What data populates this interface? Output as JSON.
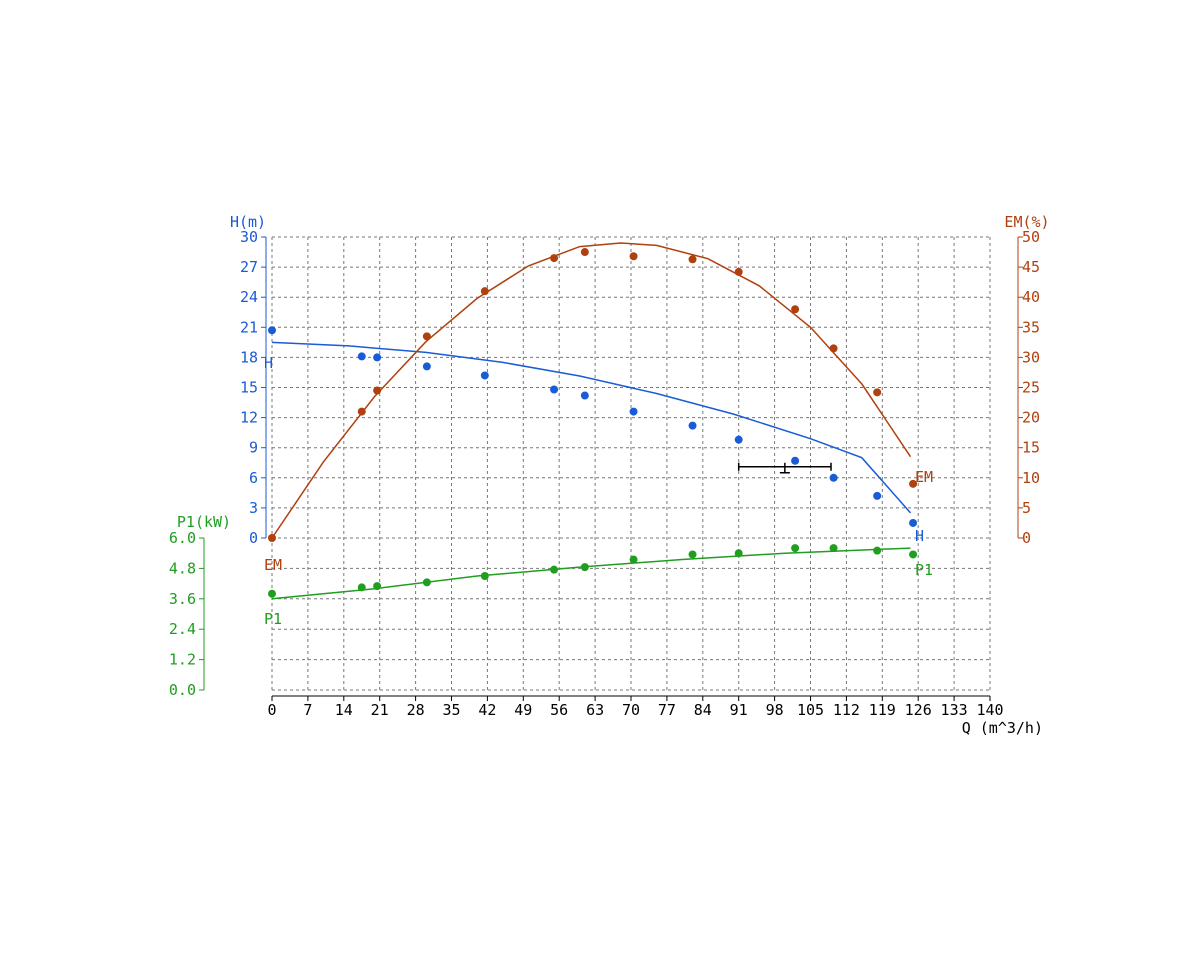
{
  "chart_data": {
    "type": "line",
    "x_axis": {
      "label": "Q (m^3/h)",
      "range": [
        0,
        140
      ],
      "ticks": [
        "0",
        "7",
        "14",
        "21",
        "28",
        "35",
        "42",
        "49",
        "56",
        "63",
        "70",
        "77",
        "84",
        "91",
        "98",
        "105",
        "112",
        "119",
        "126",
        "133",
        "140"
      ]
    },
    "axes": {
      "H": {
        "label": "H(m)",
        "range": [
          0,
          30
        ],
        "ticks": [
          "0",
          "3",
          "6",
          "9",
          "12",
          "15",
          "18",
          "21",
          "24",
          "27",
          "30"
        ],
        "color": "#1a5bd6",
        "position": "left"
      },
      "P1": {
        "label": "P1(kW)",
        "range": [
          0,
          6
        ],
        "ticks": [
          "0.0",
          "1.2",
          "2.4",
          "3.6",
          "4.8",
          "6.0"
        ],
        "color": "#1f9e1f",
        "position": "left-lower"
      },
      "EM": {
        "label": "EM(%)",
        "range": [
          0,
          50
        ],
        "ticks": [
          "0",
          "5",
          "10",
          "15",
          "20",
          "25",
          "30",
          "35",
          "40",
          "45",
          "50"
        ],
        "color": "#b0400e",
        "position": "right"
      }
    },
    "grid": true,
    "series": [
      {
        "name": "H",
        "axis": "H",
        "color": "#1a5bd6",
        "points": [
          [
            0,
            20.7
          ],
          [
            17.5,
            18.1
          ],
          [
            20.5,
            18.0
          ],
          [
            30.2,
            17.1
          ],
          [
            41.5,
            16.2
          ],
          [
            55,
            14.8
          ],
          [
            61,
            14.2
          ],
          [
            70.5,
            12.6
          ],
          [
            82,
            11.2
          ],
          [
            91,
            9.8
          ],
          [
            102,
            7.7
          ],
          [
            109.5,
            6.0
          ],
          [
            118,
            4.2
          ],
          [
            125,
            1.5
          ]
        ],
        "fit": [
          [
            0,
            19.5
          ],
          [
            15,
            19.15
          ],
          [
            30,
            18.5
          ],
          [
            45,
            17.5
          ],
          [
            60,
            16.15
          ],
          [
            75,
            14.4
          ],
          [
            90,
            12.35
          ],
          [
            105,
            9.9
          ],
          [
            115,
            8.0
          ],
          [
            124.5,
            2.5
          ]
        ],
        "label_start": "H",
        "label_end": "H"
      },
      {
        "name": "EM",
        "axis": "EM",
        "color": "#b0400e",
        "points": [
          [
            0,
            0
          ],
          [
            17.5,
            21
          ],
          [
            20.5,
            24.5
          ],
          [
            30.2,
            33.5
          ],
          [
            41.5,
            41
          ],
          [
            55,
            46.5
          ],
          [
            61,
            47.5
          ],
          [
            70.5,
            46.8
          ],
          [
            82,
            46.3
          ],
          [
            91,
            44.2
          ],
          [
            102,
            38
          ],
          [
            109.5,
            31.5
          ],
          [
            118,
            24.2
          ],
          [
            125,
            9
          ]
        ],
        "fit": [
          [
            0,
            0
          ],
          [
            10,
            12.6
          ],
          [
            20,
            23.5
          ],
          [
            30,
            32.6
          ],
          [
            40,
            39.8
          ],
          [
            50,
            45.2
          ],
          [
            60,
            48.4
          ],
          [
            68,
            49.0
          ],
          [
            75,
            48.6
          ],
          [
            85,
            46.4
          ],
          [
            95,
            41.9
          ],
          [
            105,
            35.0
          ],
          [
            115,
            25.6
          ],
          [
            124.5,
            13.5
          ]
        ],
        "label_start": "EM",
        "label_end": "EM"
      },
      {
        "name": "P1",
        "axis": "P1",
        "color": "#1f9e1f",
        "points": [
          [
            0,
            3.8
          ],
          [
            17.5,
            4.05
          ],
          [
            20.5,
            4.1
          ],
          [
            30.2,
            4.25
          ],
          [
            41.5,
            4.5
          ],
          [
            55,
            4.75
          ],
          [
            61,
            4.85
          ],
          [
            70.5,
            5.15
          ],
          [
            82,
            5.35
          ],
          [
            91,
            5.4
          ],
          [
            102,
            5.6
          ],
          [
            109.5,
            5.6
          ],
          [
            118,
            5.5
          ],
          [
            125,
            5.35
          ]
        ],
        "fit": [
          [
            0,
            3.6
          ],
          [
            20,
            4.0
          ],
          [
            40,
            4.5
          ],
          [
            60,
            4.85
          ],
          [
            80,
            5.15
          ],
          [
            100,
            5.4
          ],
          [
            124.5,
            5.6
          ]
        ],
        "label_start": "P1",
        "label_end": "P1"
      }
    ],
    "operating_point": {
      "q": 100,
      "h": 7.1,
      "q_range": [
        91,
        109
      ],
      "color": "#000000"
    }
  }
}
